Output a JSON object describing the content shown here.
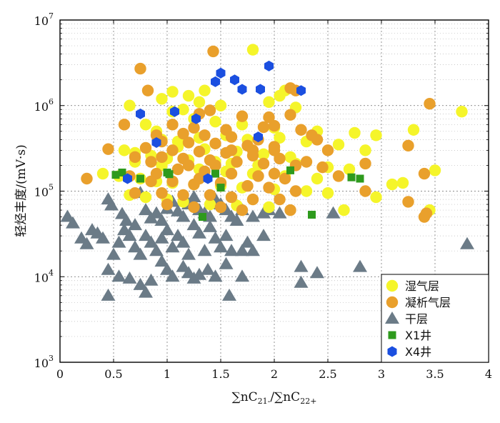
{
  "chart_data": {
    "type": "scatter",
    "title": "",
    "xlabel_parts": [
      "∑nC",
      "21-",
      "/∑nC",
      "22+"
    ],
    "ylabel": "轻烃丰度/(mV·s)",
    "xlim": [
      0,
      4
    ],
    "ylim": [
      1000,
      10000000
    ],
    "y_scale": "log",
    "grid": true,
    "x_ticks": [
      {
        "value": 0,
        "label": "0"
      },
      {
        "value": 0.5,
        "label": "0.5"
      },
      {
        "value": 1,
        "label": "1"
      },
      {
        "value": 1.5,
        "label": "1.5"
      },
      {
        "value": 2,
        "label": "2"
      },
      {
        "value": 2.5,
        "label": "2.5"
      },
      {
        "value": 3,
        "label": "3"
      },
      {
        "value": 3.5,
        "label": "3.5"
      },
      {
        "value": 4,
        "label": "4"
      }
    ],
    "y_ticks": [
      {
        "value": 1000,
        "base": "10",
        "exp": "3"
      },
      {
        "value": 10000,
        "base": "10",
        "exp": "4"
      },
      {
        "value": 100000,
        "base": "10",
        "exp": "5"
      },
      {
        "value": 1000000,
        "base": "10",
        "exp": "6"
      },
      {
        "value": 10000000,
        "base": "10",
        "exp": "7"
      }
    ],
    "legend_position": "bottom-right",
    "series": [
      {
        "name": "湿气层",
        "marker": "circle",
        "color": "#f5f52a",
        "points": [
          [
            1.8,
            4500000
          ],
          [
            1.35,
            1500000
          ],
          [
            1.05,
            1450000
          ],
          [
            1.2,
            1300000
          ],
          [
            0.95,
            1200000
          ],
          [
            1.3,
            1100000
          ],
          [
            0.65,
            1000000
          ],
          [
            1.5,
            1000000
          ],
          [
            2.1,
            1500000
          ],
          [
            2.05,
            1300000
          ],
          [
            1.95,
            1100000
          ],
          [
            2.2,
            950000
          ],
          [
            1.15,
            900000
          ],
          [
            1.05,
            850000
          ],
          [
            1.25,
            700000
          ],
          [
            1.45,
            650000
          ],
          [
            1.7,
            600000
          ],
          [
            2.0,
            550000
          ],
          [
            2.4,
            500000
          ],
          [
            2.75,
            480000
          ],
          [
            2.95,
            450000
          ],
          [
            3.3,
            520000
          ],
          [
            3.75,
            850000
          ],
          [
            0.8,
            600000
          ],
          [
            0.9,
            500000
          ],
          [
            0.95,
            400000
          ],
          [
            1.1,
            380000
          ],
          [
            1.3,
            420000
          ],
          [
            1.55,
            450000
          ],
          [
            1.75,
            400000
          ],
          [
            2.05,
            420000
          ],
          [
            2.3,
            380000
          ],
          [
            2.6,
            350000
          ],
          [
            2.85,
            300000
          ],
          [
            0.6,
            300000
          ],
          [
            0.7,
            280000
          ],
          [
            0.85,
            260000
          ],
          [
            1.0,
            240000
          ],
          [
            1.2,
            230000
          ],
          [
            1.45,
            220000
          ],
          [
            1.6,
            210000
          ],
          [
            1.85,
            200000
          ],
          [
            2.2,
            210000
          ],
          [
            2.5,
            190000
          ],
          [
            2.7,
            180000
          ],
          [
            3.5,
            175000
          ],
          [
            0.4,
            160000
          ],
          [
            0.55,
            150000
          ],
          [
            0.75,
            140000
          ],
          [
            0.9,
            130000
          ],
          [
            1.05,
            125000
          ],
          [
            1.25,
            120000
          ],
          [
            1.5,
            115000
          ],
          [
            1.7,
            110000
          ],
          [
            2.0,
            105000
          ],
          [
            2.3,
            100000
          ],
          [
            2.5,
            95000
          ],
          [
            2.95,
            85000
          ],
          [
            3.1,
            120000
          ],
          [
            3.2,
            125000
          ],
          [
            0.65,
            90000
          ],
          [
            0.8,
            85000
          ],
          [
            1.0,
            80000
          ],
          [
            1.15,
            75000
          ],
          [
            1.4,
            70000
          ],
          [
            1.65,
            68000
          ],
          [
            1.95,
            65000
          ],
          [
            2.65,
            60000
          ],
          [
            3.45,
            60000
          ],
          [
            1.1,
            330000
          ],
          [
            1.35,
            310000
          ],
          [
            1.65,
            290000
          ],
          [
            1.9,
            270000
          ],
          [
            2.15,
            250000
          ],
          [
            0.7,
            220000
          ],
          [
            0.95,
            200000
          ],
          [
            1.3,
            180000
          ],
          [
            1.55,
            170000
          ],
          [
            1.8,
            160000
          ],
          [
            2.1,
            150000
          ],
          [
            2.4,
            140000
          ]
        ]
      },
      {
        "name": "凝析气层",
        "marker": "circle",
        "color": "#e9a02c",
        "points": [
          [
            1.43,
            4300000
          ],
          [
            0.75,
            2700000
          ],
          [
            2.15,
            1600000
          ],
          [
            2.2,
            1500000
          ],
          [
            0.82,
            1500000
          ],
          [
            3.45,
            1050000
          ],
          [
            1.4,
            880000
          ],
          [
            1.3,
            800000
          ],
          [
            1.7,
            750000
          ],
          [
            1.95,
            730000
          ],
          [
            2.15,
            780000
          ],
          [
            0.6,
            600000
          ],
          [
            1.05,
            600000
          ],
          [
            1.25,
            550000
          ],
          [
            1.55,
            520000
          ],
          [
            1.9,
            560000
          ],
          [
            2.0,
            580000
          ],
          [
            2.25,
            520000
          ],
          [
            2.35,
            450000
          ],
          [
            1.15,
            470000
          ],
          [
            1.35,
            450000
          ],
          [
            0.9,
            450000
          ],
          [
            1.6,
            430000
          ],
          [
            1.85,
            400000
          ],
          [
            0.95,
            380000
          ],
          [
            1.2,
            370000
          ],
          [
            1.45,
            360000
          ],
          [
            1.75,
            340000
          ],
          [
            2.0,
            330000
          ],
          [
            2.4,
            400000
          ],
          [
            2.5,
            300000
          ],
          [
            3.25,
            340000
          ],
          [
            0.45,
            310000
          ],
          [
            0.8,
            320000
          ],
          [
            1.05,
            300000
          ],
          [
            1.3,
            290000
          ],
          [
            1.55,
            280000
          ],
          [
            1.8,
            260000
          ],
          [
            2.05,
            240000
          ],
          [
            2.3,
            220000
          ],
          [
            2.85,
            210000
          ],
          [
            0.7,
            250000
          ],
          [
            0.95,
            250000
          ],
          [
            1.15,
            240000
          ],
          [
            1.4,
            230000
          ],
          [
            1.65,
            220000
          ],
          [
            1.9,
            210000
          ],
          [
            2.2,
            200000
          ],
          [
            2.45,
            190000
          ],
          [
            3.4,
            160000
          ],
          [
            0.25,
            140000
          ],
          [
            0.65,
            150000
          ],
          [
            0.9,
            160000
          ],
          [
            1.1,
            180000
          ],
          [
            1.35,
            170000
          ],
          [
            1.6,
            160000
          ],
          [
            1.85,
            150000
          ],
          [
            2.1,
            140000
          ],
          [
            2.6,
            150000
          ],
          [
            0.85,
            130000
          ],
          [
            1.05,
            130000
          ],
          [
            1.25,
            120000
          ],
          [
            1.5,
            125000
          ],
          [
            1.75,
            115000
          ],
          [
            1.95,
            110000
          ],
          [
            2.2,
            100000
          ],
          [
            2.85,
            100000
          ],
          [
            0.7,
            95000
          ],
          [
            0.95,
            95000
          ],
          [
            1.15,
            90000
          ],
          [
            1.4,
            90000
          ],
          [
            1.6,
            85000
          ],
          [
            1.8,
            80000
          ],
          [
            2.05,
            80000
          ],
          [
            3.25,
            75000
          ],
          [
            1.0,
            70000
          ],
          [
            1.25,
            65000
          ],
          [
            1.5,
            65000
          ],
          [
            1.7,
            60000
          ],
          [
            2.15,
            60000
          ],
          [
            3.42,
            55000
          ],
          [
            3.4,
            50000
          ],
          [
            1.6,
            300000
          ],
          [
            1.8,
            300000
          ],
          [
            2.0,
            300000
          ],
          [
            1.2,
            200000
          ],
          [
            1.45,
            200000
          ],
          [
            0.85,
            220000
          ],
          [
            2.0,
            160000
          ],
          [
            1.3,
            140000
          ]
        ]
      },
      {
        "name": "干层",
        "marker": "triangle",
        "color": "#6b7b87",
        "points": [
          [
            0.07,
            50000
          ],
          [
            0.12,
            42000
          ],
          [
            0.3,
            35000
          ],
          [
            0.45,
            80000
          ],
          [
            0.48,
            68000
          ],
          [
            0.58,
            54000
          ],
          [
            0.62,
            45000
          ],
          [
            0.7,
            40000
          ],
          [
            0.75,
            95000
          ],
          [
            0.8,
            60000
          ],
          [
            0.85,
            48000
          ],
          [
            0.9,
            55000
          ],
          [
            0.95,
            45000
          ],
          [
            1.0,
            62000
          ],
          [
            1.05,
            75000
          ],
          [
            1.1,
            58000
          ],
          [
            1.15,
            50000
          ],
          [
            1.2,
            70000
          ],
          [
            1.25,
            85000
          ],
          [
            1.3,
            60000
          ],
          [
            1.35,
            55000
          ],
          [
            1.4,
            50000
          ],
          [
            1.45,
            80000
          ],
          [
            1.5,
            70000
          ],
          [
            1.55,
            60000
          ],
          [
            1.6,
            50000
          ],
          [
            1.65,
            45000
          ],
          [
            1.7,
            60000
          ],
          [
            1.8,
            50000
          ],
          [
            1.9,
            55000
          ],
          [
            1.95,
            60000
          ],
          [
            2.05,
            55000
          ],
          [
            2.25,
            13000
          ],
          [
            2.4,
            11000
          ],
          [
            2.55,
            55000
          ],
          [
            2.8,
            13000
          ],
          [
            3.8,
            24000
          ],
          [
            0.2,
            28000
          ],
          [
            0.25,
            24000
          ],
          [
            0.35,
            32000
          ],
          [
            0.4,
            28000
          ],
          [
            0.5,
            18000
          ],
          [
            0.55,
            25000
          ],
          [
            0.6,
            35000
          ],
          [
            0.65,
            30000
          ],
          [
            0.7,
            22000
          ],
          [
            0.75,
            18000
          ],
          [
            0.8,
            30000
          ],
          [
            0.85,
            25000
          ],
          [
            0.9,
            20000
          ],
          [
            0.95,
            28000
          ],
          [
            1.0,
            35000
          ],
          [
            1.05,
            22000
          ],
          [
            1.1,
            30000
          ],
          [
            1.15,
            25000
          ],
          [
            1.2,
            18000
          ],
          [
            1.25,
            40000
          ],
          [
            1.3,
            32000
          ],
          [
            1.35,
            20000
          ],
          [
            1.4,
            38000
          ],
          [
            1.45,
            28000
          ],
          [
            1.5,
            22000
          ],
          [
            1.55,
            30000
          ],
          [
            1.6,
            20000
          ],
          [
            1.7,
            20000
          ],
          [
            1.75,
            25000
          ],
          [
            1.8,
            20000
          ],
          [
            1.9,
            30000
          ],
          [
            0.45,
            12000
          ],
          [
            0.55,
            10000
          ],
          [
            0.65,
            9500
          ],
          [
            0.75,
            8000
          ],
          [
            0.8,
            6500
          ],
          [
            0.45,
            6000
          ],
          [
            1.0,
            12000
          ],
          [
            1.05,
            10000
          ],
          [
            1.15,
            13000
          ],
          [
            1.2,
            11000
          ],
          [
            1.25,
            9500
          ],
          [
            1.3,
            10500
          ],
          [
            1.38,
            12000
          ],
          [
            1.45,
            10000
          ],
          [
            1.55,
            14000
          ],
          [
            1.7,
            10000
          ],
          [
            1.58,
            6000
          ],
          [
            2.25,
            8500
          ],
          [
            0.85,
            9000
          ],
          [
            0.95,
            15000
          ]
        ]
      },
      {
        "name": "X1井",
        "marker": "square",
        "color": "#2e9a1d",
        "points": [
          [
            0.52,
            155000
          ],
          [
            0.58,
            165000
          ],
          [
            0.75,
            140000
          ],
          [
            1.0,
            165000
          ],
          [
            1.02,
            158000
          ],
          [
            1.45,
            160000
          ],
          [
            1.5,
            110000
          ],
          [
            1.33,
            50000
          ],
          [
            2.15,
            175000
          ],
          [
            2.35,
            53000
          ],
          [
            2.72,
            145000
          ],
          [
            2.8,
            140000
          ]
        ]
      },
      {
        "name": "X4井",
        "marker": "hexagon",
        "color": "#1b4fe0",
        "points": [
          [
            1.5,
            2400000
          ],
          [
            1.45,
            1900000
          ],
          [
            1.63,
            2000000
          ],
          [
            1.7,
            1550000
          ],
          [
            1.95,
            2900000
          ],
          [
            1.87,
            1550000
          ],
          [
            2.25,
            1500000
          ],
          [
            0.75,
            800000
          ],
          [
            1.07,
            850000
          ],
          [
            1.27,
            700000
          ],
          [
            0.9,
            370000
          ],
          [
            1.85,
            430000
          ],
          [
            0.63,
            140000
          ],
          [
            1.38,
            140000
          ]
        ]
      }
    ]
  }
}
